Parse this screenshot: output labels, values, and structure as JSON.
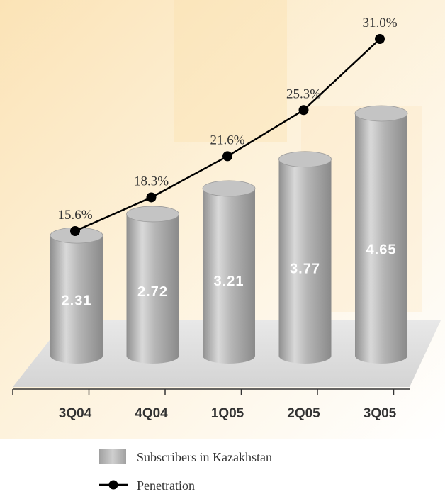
{
  "chart_data": {
    "type": "bar",
    "categories": [
      "3Q04",
      "4Q04",
      "1Q05",
      "2Q05",
      "3Q05"
    ],
    "series": [
      {
        "name": "Subscribers in Kazakhstan",
        "kind": "bar-3d-cylinder",
        "values": [
          2.31,
          2.72,
          3.21,
          3.77,
          4.65
        ],
        "labels": [
          "2.31",
          "2.72",
          "3.21",
          "3.77",
          "4.65"
        ]
      },
      {
        "name": "Penetration",
        "kind": "line",
        "unit": "%",
        "values": [
          15.6,
          18.3,
          21.6,
          25.3,
          31.0
        ],
        "labels": [
          "15.6%",
          "18.3%",
          "21.6%",
          "25.3%",
          "31.0%"
        ]
      }
    ],
    "title": "",
    "xlabel": "",
    "ylabel": "",
    "axes_visible": false,
    "grid": false,
    "legend_position": "bottom",
    "colors": {
      "bar_body": "#a9a9a9",
      "bar_highlight": "#d8d8d8",
      "bar_top": "#c4c4c4",
      "floor": "#e3e3e3",
      "line": "#000000",
      "marker": "#000000",
      "background_warm": "#fbe7bf",
      "bar_label": "#ffffff"
    }
  },
  "legend": {
    "items": [
      {
        "label": "Subscribers in Kazakhstan",
        "swatch": "bar"
      },
      {
        "label": "Penetration",
        "swatch": "line-marker"
      }
    ]
  }
}
